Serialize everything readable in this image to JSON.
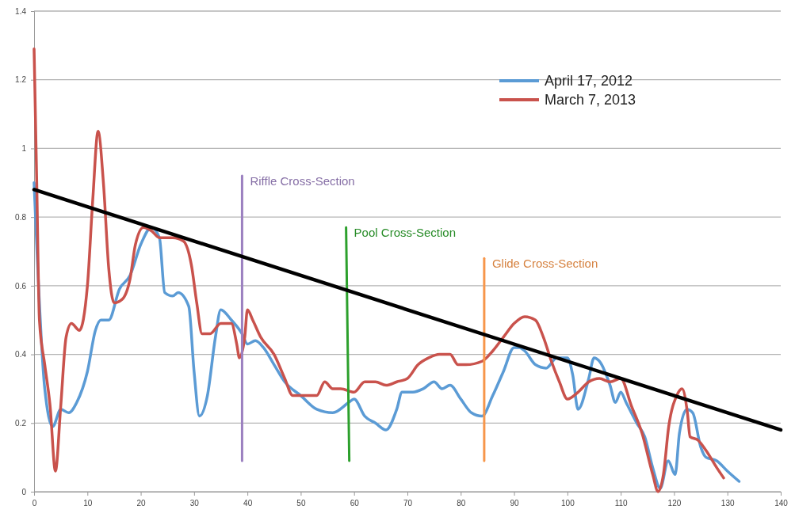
{
  "chart_data": {
    "type": "line",
    "xlim": [
      0,
      140
    ],
    "ylim": [
      0,
      1.4
    ],
    "xticks": [
      0,
      10,
      20,
      30,
      40,
      50,
      60,
      70,
      80,
      90,
      100,
      110,
      120,
      130,
      140
    ],
    "yticks": [
      0,
      0.2,
      0.4,
      0.6,
      0.8,
      1,
      1.2,
      1.4
    ],
    "grid": "y",
    "legend": "top right",
    "marker": "none",
    "line_style": "solid",
    "series": [
      {
        "name": "April 17, 2012",
        "color": "#5b9bd5",
        "x": [
          0,
          2,
          3.5,
          5,
          6.5,
          8,
          10,
          11.5,
          12.5,
          14,
          16,
          18,
          20,
          22,
          23.5,
          24.5,
          26,
          27,
          29,
          30,
          31,
          32.5,
          34,
          35,
          37,
          39,
          40,
          41.5,
          43,
          45,
          47,
          50,
          53,
          56,
          59,
          60,
          62,
          64,
          66,
          68,
          69,
          71,
          73,
          75,
          76.5,
          78,
          80,
          82,
          84,
          86,
          88,
          90,
          91,
          92,
          94,
          96,
          98,
          100,
          101,
          102,
          104,
          105,
          106,
          108,
          109,
          110,
          111,
          113,
          114.5,
          116,
          117.4,
          118.9,
          120.2,
          121,
          122.4,
          123.5,
          125,
          126,
          128,
          130,
          132.2
        ],
        "values": [
          0.9,
          0.3,
          0.19,
          0.24,
          0.23,
          0.26,
          0.35,
          0.47,
          0.5,
          0.5,
          0.59,
          0.63,
          0.72,
          0.77,
          0.74,
          0.58,
          0.57,
          0.58,
          0.54,
          0.35,
          0.22,
          0.28,
          0.45,
          0.53,
          0.5,
          0.46,
          0.43,
          0.44,
          0.42,
          0.37,
          0.32,
          0.28,
          0.24,
          0.23,
          0.26,
          0.27,
          0.22,
          0.2,
          0.18,
          0.24,
          0.29,
          0.29,
          0.3,
          0.32,
          0.3,
          0.31,
          0.27,
          0.23,
          0.22,
          0.28,
          0.35,
          0.42,
          0.42,
          0.41,
          0.37,
          0.36,
          0.39,
          0.39,
          0.34,
          0.24,
          0.33,
          0.39,
          0.38,
          0.31,
          0.26,
          0.29,
          0.26,
          0.2,
          0.16,
          0.07,
          0.01,
          0.09,
          0.05,
          0.17,
          0.24,
          0.23,
          0.13,
          0.1,
          0.09,
          0.06,
          0.03
        ]
      },
      {
        "name": "March 7, 2013",
        "color": "#c9524c",
        "x": [
          0,
          0.5,
          1,
          2,
          3,
          4,
          5,
          6,
          7,
          8.5,
          10,
          11,
          12,
          13,
          14,
          15,
          16.5,
          18,
          19,
          20.5,
          22,
          23.5,
          26,
          28,
          29.5,
          30.5,
          31.5,
          33,
          35,
          37,
          38,
          38.5,
          39.5,
          40,
          41,
          42.5,
          45,
          47,
          48.5,
          51,
          53,
          54.5,
          56,
          57.5,
          60,
          62,
          64,
          66,
          68,
          70,
          72,
          74,
          76,
          78,
          79.5,
          81,
          84,
          86,
          88,
          90,
          92,
          94,
          95.5,
          97,
          98.5,
          100,
          102,
          104,
          106,
          108,
          110,
          112,
          114,
          116,
          117,
          118,
          119,
          120.5,
          121.5,
          122.5,
          123,
          124.5,
          126,
          128,
          129.3
        ],
        "values": [
          1.29,
          0.9,
          0.5,
          0.37,
          0.25,
          0.06,
          0.25,
          0.45,
          0.49,
          0.47,
          0.6,
          0.85,
          1.05,
          0.9,
          0.65,
          0.55,
          0.56,
          0.62,
          0.72,
          0.77,
          0.76,
          0.74,
          0.74,
          0.73,
          0.66,
          0.55,
          0.46,
          0.46,
          0.49,
          0.49,
          0.43,
          0.39,
          0.45,
          0.53,
          0.5,
          0.45,
          0.4,
          0.33,
          0.28,
          0.28,
          0.28,
          0.32,
          0.3,
          0.3,
          0.29,
          0.32,
          0.32,
          0.31,
          0.32,
          0.33,
          0.37,
          0.39,
          0.4,
          0.4,
          0.37,
          0.37,
          0.38,
          0.41,
          0.45,
          0.49,
          0.51,
          0.5,
          0.45,
          0.38,
          0.32,
          0.27,
          0.29,
          0.32,
          0.33,
          0.32,
          0.33,
          0.25,
          0.17,
          0.05,
          0,
          0.05,
          0.19,
          0.28,
          0.3,
          0.23,
          0.16,
          0.15,
          0.12,
          0.07,
          0.04
        ]
      },
      {
        "name": "Riffle Cross-Section",
        "color": "#9b80c0",
        "x": [
          39,
          39
        ],
        "values": [
          0.09,
          0.92
        ]
      },
      {
        "name": "Pool Cross-Section",
        "color": "#2ca02c",
        "x": [
          59.1,
          58.5
        ],
        "values": [
          0.09,
          0.77
        ]
      },
      {
        "name": "Glide Cross-Section",
        "color": "#f7964a",
        "x": [
          84.4,
          84.4
        ],
        "values": [
          0.09,
          0.68
        ]
      },
      {
        "color": "#000000",
        "x": [
          0,
          140
        ],
        "values": [
          0.88,
          0.18
        ]
      }
    ]
  }
}
